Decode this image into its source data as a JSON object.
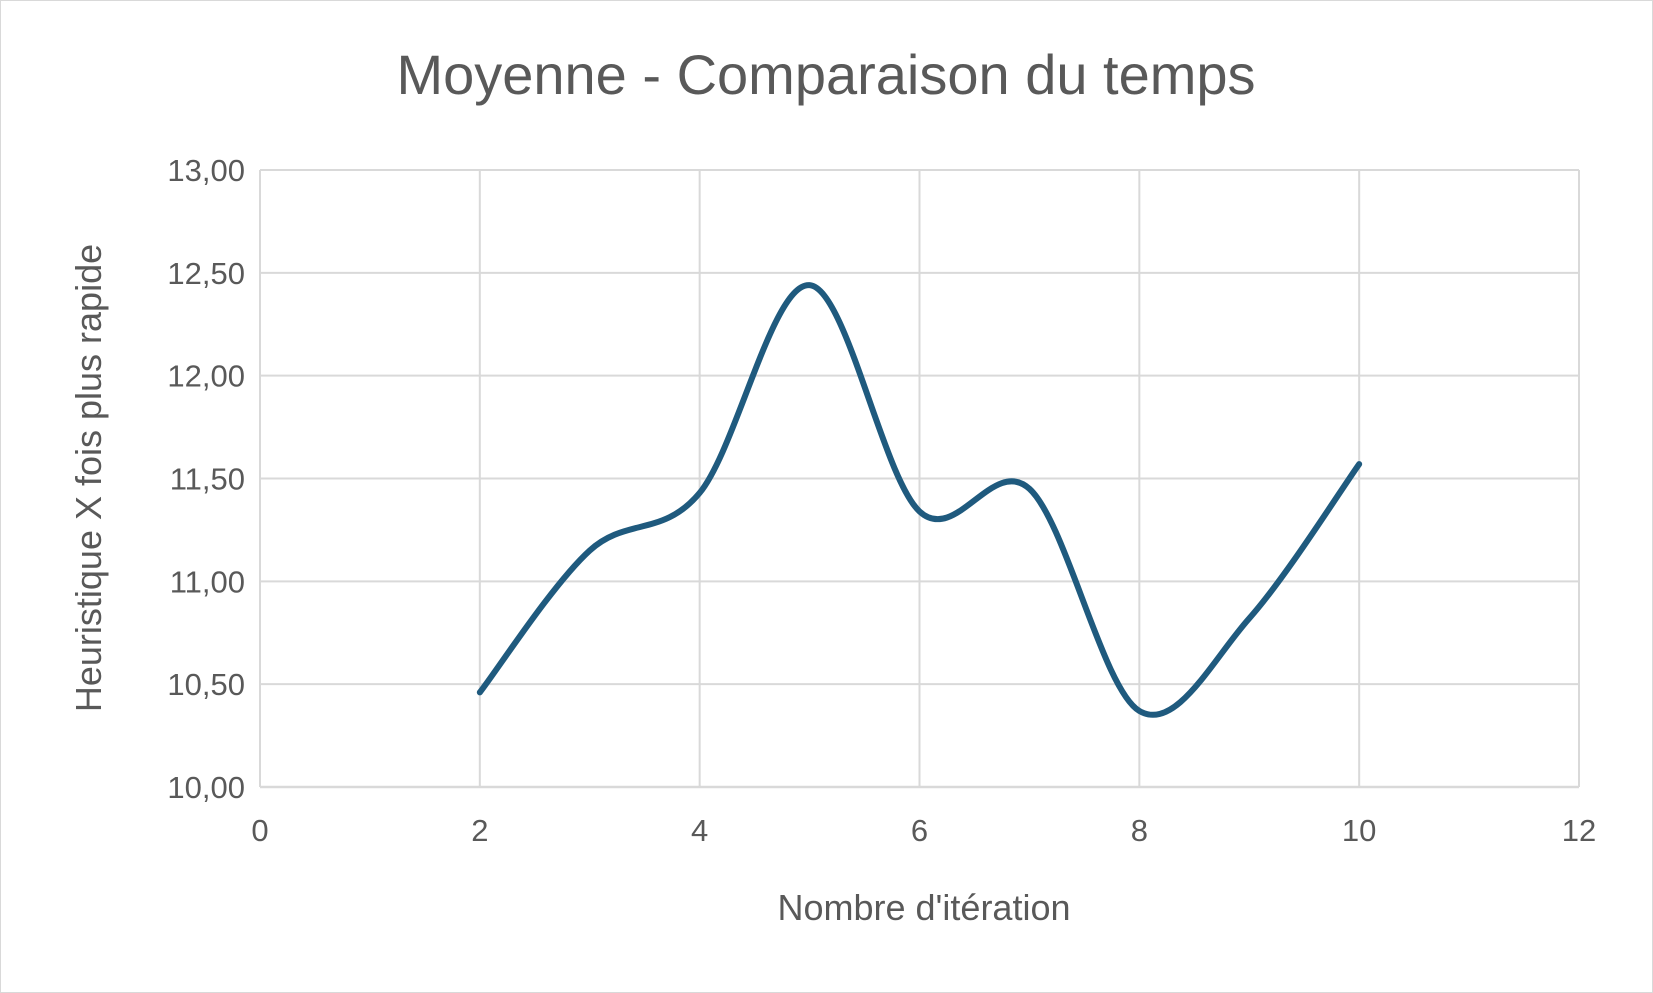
{
  "chart_data": {
    "type": "line",
    "title": "Moyenne - Comparaison du temps",
    "xlabel": "Nombre d'itération",
    "ylabel": "Heuristique X fois plus rapide",
    "xlim": [
      0,
      12
    ],
    "ylim": [
      10,
      13
    ],
    "x_ticks": [
      "0",
      "2",
      "4",
      "6",
      "8",
      "10",
      "12"
    ],
    "y_ticks": [
      "10,00",
      "10,50",
      "11,00",
      "11,50",
      "12,00",
      "12,50",
      "13,00"
    ],
    "grid": true,
    "smooth": true,
    "series": [
      {
        "color": "#1f5a7e",
        "x": [
          2,
          3,
          4,
          5,
          6,
          7,
          8,
          9,
          10
        ],
        "y": [
          10.46,
          11.15,
          11.43,
          12.44,
          11.34,
          11.45,
          10.37,
          10.82,
          11.57
        ]
      }
    ]
  }
}
